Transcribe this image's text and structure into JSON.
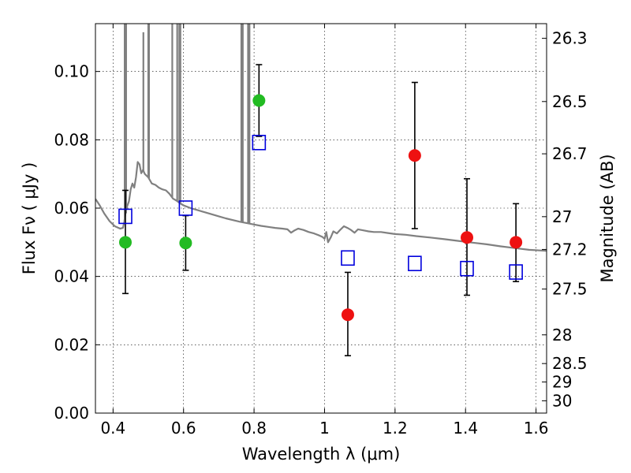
{
  "chart_data": {
    "type": "scatter",
    "xlabel": "Wavelength  λ (μm)",
    "ylabel": "Flux  Fν  ( μJy )",
    "ylabel_right": "Magnitude (AB)",
    "xlim": [
      0.35,
      1.63
    ],
    "ylim": [
      0.0,
      0.114
    ],
    "grid": true,
    "x_ticks": [
      0.4,
      0.6,
      0.8,
      1.0,
      1.2,
      1.4,
      1.6
    ],
    "x_tick_labels": [
      "0.4",
      "0.6",
      "0.8",
      "1",
      "1.2",
      "1.4",
      "1.6"
    ],
    "y_ticks": [
      0.0,
      0.02,
      0.04,
      0.06,
      0.08,
      0.1
    ],
    "y_tick_labels": [
      "0.00",
      "0.02",
      "0.04",
      "0.06",
      "0.08",
      "0.10"
    ],
    "right_ticks": [
      {
        "label": "26.3",
        "flux": 0.1097
      },
      {
        "label": "26.5",
        "flux": 0.0912
      },
      {
        "label": "26.7",
        "flux": 0.0759
      },
      {
        "label": "27",
        "flux": 0.0575
      },
      {
        "label": "27.2",
        "flux": 0.0479
      },
      {
        "label": "27.5",
        "flux": 0.0363
      },
      {
        "label": "28",
        "flux": 0.0229
      },
      {
        "label": "28.5",
        "flux": 0.0145
      },
      {
        "label": "29",
        "flux": 0.0091
      },
      {
        "label": "30",
        "flux": 0.0036
      }
    ],
    "series": [
      {
        "marker": "circle",
        "color": "#22bb22",
        "points": [
          {
            "x": 0.435,
            "y": 0.05,
            "ylo": 0.035,
            "yhi": 0.0652
          },
          {
            "x": 0.606,
            "y": 0.0498,
            "ylo": 0.0418,
            "yhi": 0.0578
          },
          {
            "x": 0.814,
            "y": 0.0915,
            "ylo": 0.081,
            "yhi": 0.102
          }
        ]
      },
      {
        "marker": "circle",
        "color": "#ee1111",
        "points": [
          {
            "x": 1.066,
            "y": 0.0288,
            "ylo": 0.0168,
            "yhi": 0.0412
          },
          {
            "x": 1.256,
            "y": 0.0754,
            "ylo": 0.054,
            "yhi": 0.0968
          },
          {
            "x": 1.404,
            "y": 0.0514,
            "ylo": 0.0345,
            "yhi": 0.0686
          },
          {
            "x": 1.543,
            "y": 0.05,
            "ylo": 0.0385,
            "yhi": 0.0613
          }
        ]
      },
      {
        "marker": "square-open",
        "color": "#0000dd",
        "points": [
          {
            "x": 0.435,
            "y": 0.0576
          },
          {
            "x": 0.606,
            "y": 0.06
          },
          {
            "x": 0.814,
            "y": 0.0792
          },
          {
            "x": 1.066,
            "y": 0.0454
          },
          {
            "x": 1.256,
            "y": 0.0438
          },
          {
            "x": 1.404,
            "y": 0.0423
          },
          {
            "x": 1.543,
            "y": 0.0413
          }
        ]
      },
      {
        "marker": "line",
        "color": "#808080",
        "points": [
          [
            0.35,
            0.0627
          ],
          [
            0.362,
            0.0608
          ],
          [
            0.375,
            0.0584
          ],
          [
            0.39,
            0.0562
          ],
          [
            0.405,
            0.0547
          ],
          [
            0.42,
            0.054
          ],
          [
            0.428,
            0.0542
          ],
          [
            0.432,
            0.056
          ],
          [
            0.436,
            0.059
          ],
          [
            0.44,
            0.0605
          ],
          [
            0.445,
            0.062
          ],
          [
            0.45,
            0.0655
          ],
          [
            0.455,
            0.0672
          ],
          [
            0.46,
            0.066
          ],
          [
            0.465,
            0.069
          ],
          [
            0.47,
            0.0735
          ],
          [
            0.475,
            0.0728
          ],
          [
            0.48,
            0.0702
          ],
          [
            0.485,
            0.0712
          ],
          [
            0.49,
            0.07
          ],
          [
            0.5,
            0.069
          ],
          [
            0.51,
            0.0672
          ],
          [
            0.52,
            0.0668
          ],
          [
            0.53,
            0.066
          ],
          [
            0.54,
            0.0655
          ],
          [
            0.55,
            0.0652
          ],
          [
            0.56,
            0.0642
          ],
          [
            0.57,
            0.0628
          ],
          [
            0.58,
            0.0622
          ],
          [
            0.59,
            0.0614
          ],
          [
            0.6,
            0.0608
          ],
          [
            0.62,
            0.06
          ],
          [
            0.64,
            0.0594
          ],
          [
            0.66,
            0.0588
          ],
          [
            0.68,
            0.0582
          ],
          [
            0.7,
            0.0576
          ],
          [
            0.72,
            0.057
          ],
          [
            0.74,
            0.0565
          ],
          [
            0.76,
            0.056
          ],
          [
            0.78,
            0.0556
          ],
          [
            0.8,
            0.0552
          ],
          [
            0.82,
            0.0548
          ],
          [
            0.84,
            0.0545
          ],
          [
            0.86,
            0.0542
          ],
          [
            0.88,
            0.054
          ],
          [
            0.895,
            0.0538
          ],
          [
            0.905,
            0.0528
          ],
          [
            0.915,
            0.0535
          ],
          [
            0.925,
            0.054
          ],
          [
            0.94,
            0.0536
          ],
          [
            0.955,
            0.053
          ],
          [
            0.97,
            0.0526
          ],
          [
            0.985,
            0.052
          ],
          [
            0.995,
            0.0515
          ],
          [
            1.0,
            0.051
          ],
          [
            1.005,
            0.053
          ],
          [
            1.01,
            0.05
          ],
          [
            1.018,
            0.0515
          ],
          [
            1.025,
            0.0532
          ],
          [
            1.035,
            0.0526
          ],
          [
            1.045,
            0.0537
          ],
          [
            1.055,
            0.0547
          ],
          [
            1.065,
            0.0542
          ],
          [
            1.075,
            0.0536
          ],
          [
            1.085,
            0.0528
          ],
          [
            1.095,
            0.0538
          ],
          [
            1.11,
            0.0535
          ],
          [
            1.125,
            0.0532
          ],
          [
            1.14,
            0.053
          ],
          [
            1.16,
            0.053
          ],
          [
            1.18,
            0.0527
          ],
          [
            1.2,
            0.0524
          ],
          [
            1.23,
            0.0522
          ],
          [
            1.26,
            0.0518
          ],
          [
            1.3,
            0.0514
          ],
          [
            1.34,
            0.0509
          ],
          [
            1.38,
            0.0504
          ],
          [
            1.42,
            0.0499
          ],
          [
            1.46,
            0.0494
          ],
          [
            1.5,
            0.0488
          ],
          [
            1.54,
            0.0483
          ],
          [
            1.58,
            0.0478
          ],
          [
            1.63,
            0.0475
          ]
        ],
        "spikes": [
          {
            "x": 0.433,
            "top": 0.114,
            "base": 0.0562
          },
          {
            "x": 0.437,
            "top": 0.114,
            "base": 0.0585
          },
          {
            "x": 0.486,
            "top": 0.1115,
            "base": 0.0708
          },
          {
            "x": 0.5,
            "top": 0.114,
            "base": 0.069
          },
          {
            "x": 0.502,
            "top": 0.114,
            "base": 0.0688
          },
          {
            "x": 0.568,
            "top": 0.114,
            "base": 0.0632
          },
          {
            "x": 0.582,
            "top": 0.114,
            "base": 0.062
          },
          {
            "x": 0.588,
            "top": 0.114,
            "base": 0.0616
          },
          {
            "x": 0.591,
            "top": 0.114,
            "base": 0.0614
          },
          {
            "x": 0.764,
            "top": 0.114,
            "base": 0.0559
          },
          {
            "x": 0.768,
            "top": 0.114,
            "base": 0.0558
          },
          {
            "x": 0.783,
            "top": 0.114,
            "base": 0.0555
          },
          {
            "x": 0.787,
            "top": 0.114,
            "base": 0.0554
          }
        ]
      }
    ]
  }
}
